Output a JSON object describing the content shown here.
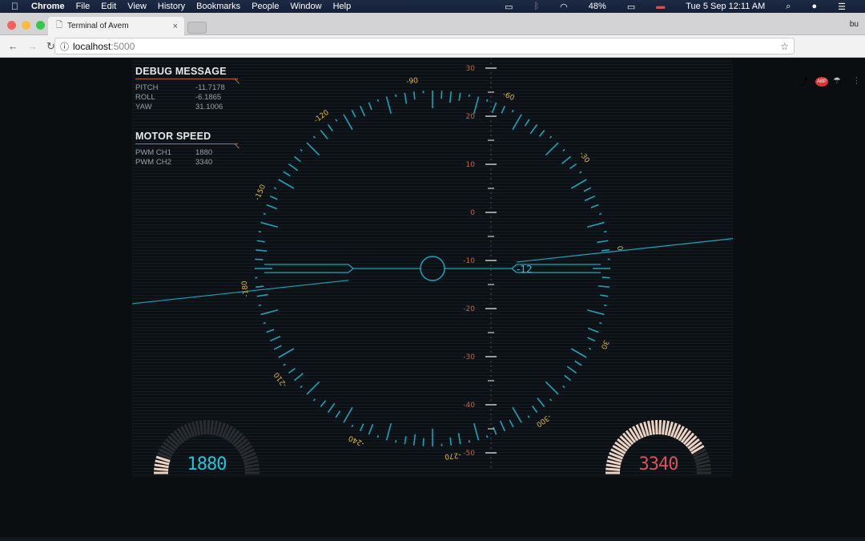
{
  "menubar": {
    "app": "Chrome",
    "items": [
      "File",
      "Edit",
      "View",
      "History",
      "Bookmarks",
      "People",
      "Window",
      "Help"
    ],
    "battery": "48%",
    "datetime": "Tue 5 Sep  12:11 AM"
  },
  "browser": {
    "tab_title": "Terminal of Avem",
    "profile": "bu",
    "url_host": "localhost",
    "url_port": ":5000"
  },
  "debug": {
    "title": "DEBUG MESSAGE",
    "rows": [
      {
        "label": "PITCH",
        "value": "-11.7178"
      },
      {
        "label": "ROLL",
        "value": "-6.1865"
      },
      {
        "label": "YAW",
        "value": "31.1006"
      }
    ]
  },
  "motor": {
    "title": "MOTOR SPEED",
    "rows": [
      {
        "label": "PWM CH1",
        "value": "1880"
      },
      {
        "label": "PWM CH2",
        "value": "3340"
      }
    ]
  },
  "hud": {
    "pitch": -11.7178,
    "roll": -6.1865,
    "pitch_readout": "-12",
    "pitch_ticks": [
      "30",
      "20",
      "10",
      "0",
      "-10",
      "-20",
      "-30",
      "-40",
      "-50"
    ],
    "heading_labels": [
      "0",
      "-30",
      "-60",
      "-90",
      "-120",
      "-150",
      "-180",
      "-210",
      "-240",
      "-270",
      "-300",
      "30"
    ],
    "colors": {
      "cyan": "#1fa3b8",
      "heading_label": "#e0b84a",
      "pitch_label": "#c9683a",
      "ch2": "#d9505e",
      "ch1": "#22c3d8"
    }
  },
  "gauges": [
    {
      "value": "1880",
      "fill": 0.12,
      "color": "#22c3d8"
    },
    {
      "value": "3340",
      "fill": 0.85,
      "color": "#d9505e"
    }
  ]
}
